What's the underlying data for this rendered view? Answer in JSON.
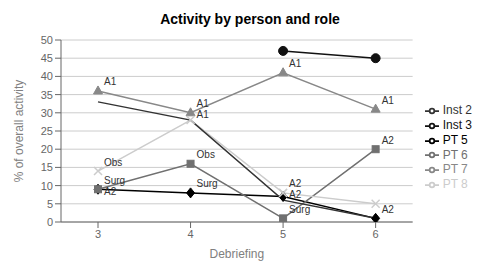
{
  "chart_data": {
    "type": "line",
    "title": "Activity by person and role",
    "x_label": "Debriefing",
    "y_label": "% of overall activity",
    "x": [
      3,
      4,
      5,
      6
    ],
    "xlim": [
      2.6,
      6.4
    ],
    "xticks": [
      3,
      4,
      5,
      6
    ],
    "ylim": [
      0,
      50
    ],
    "yticks": [
      0,
      5,
      10,
      15,
      20,
      25,
      30,
      35,
      40,
      45,
      50
    ],
    "grid": "y",
    "legend": "right",
    "series": [
      {
        "name": "PT 5",
        "color": "#000000",
        "marker": "diamond",
        "line_style": "solid",
        "values": [
          9,
          8,
          7,
          1
        ],
        "annotations": [
          "Surg",
          "Surg",
          "A2",
          "A2"
        ]
      },
      {
        "name": "PT 6",
        "color": "#707070",
        "marker": "square",
        "line_style": "solid",
        "values": [
          9,
          16,
          1,
          20
        ],
        "annotations": [
          "A2",
          "Obs",
          "Surg",
          "A2"
        ]
      },
      {
        "name": "PT 7",
        "color": "#888888",
        "marker": "triangle",
        "line_style": "solid",
        "values": [
          36,
          30,
          41,
          31
        ],
        "annotations": [
          "A1",
          "A1",
          "A1",
          "A1"
        ]
      },
      {
        "name": "PT 8",
        "color": "#cccccc",
        "marker": "x",
        "line_style": "solid",
        "values": [
          14,
          28,
          8,
          5
        ],
        "annotations": [
          "Obs",
          "A1",
          "A2",
          null
        ]
      },
      {
        "name": "Inst 2",
        "color": "#333333",
        "marker": "none",
        "line_style": "solid",
        "values": [
          33,
          28,
          6,
          1
        ],
        "annotations": [
          null,
          null,
          null,
          null
        ]
      },
      {
        "name": "Inst 3",
        "color": "#111111",
        "marker": "circle",
        "line_style": "solid",
        "values": [
          null,
          null,
          47,
          45
        ],
        "annotations": [
          null,
          null,
          null,
          null
        ]
      }
    ]
  }
}
